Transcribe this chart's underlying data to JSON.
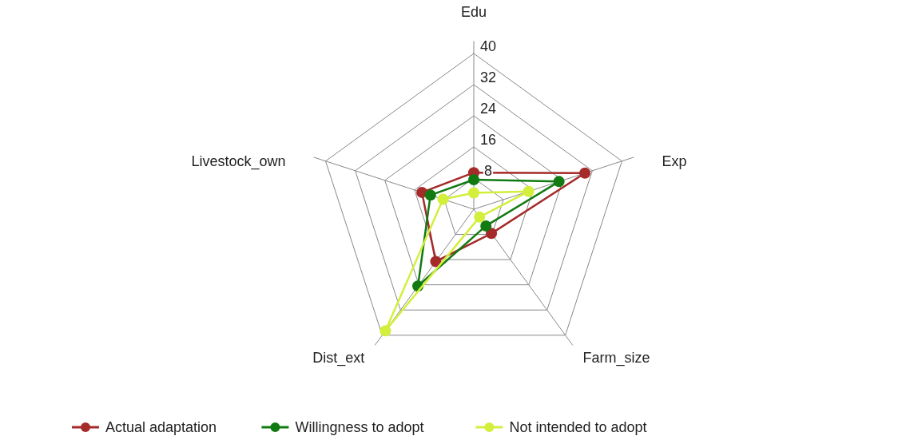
{
  "chart_data": {
    "type": "radar",
    "categories": [
      "Edu",
      "Exp",
      "Farm_size",
      "Dist_ext",
      "Livestock_own"
    ],
    "series": [
      {
        "name": "Actual adaptation",
        "color": "#a52a2a",
        "values": [
          9.4,
          30,
          7.7,
          16.6,
          14
        ]
      },
      {
        "name": "Willingness to adopt",
        "color": "#117a11",
        "values": [
          7.6,
          23,
          5.3,
          24.4,
          11.7
        ]
      },
      {
        "name": "Not intended to adopt",
        "color": "#d4ee3c",
        "values": [
          4.2,
          14.8,
          2.5,
          38.6,
          8.3
        ]
      }
    ],
    "ylim": [
      0,
      40
    ],
    "yticks": [
      8,
      16,
      24,
      32,
      40
    ],
    "grid": true,
    "legend": "bottom",
    "marker": "circle"
  }
}
